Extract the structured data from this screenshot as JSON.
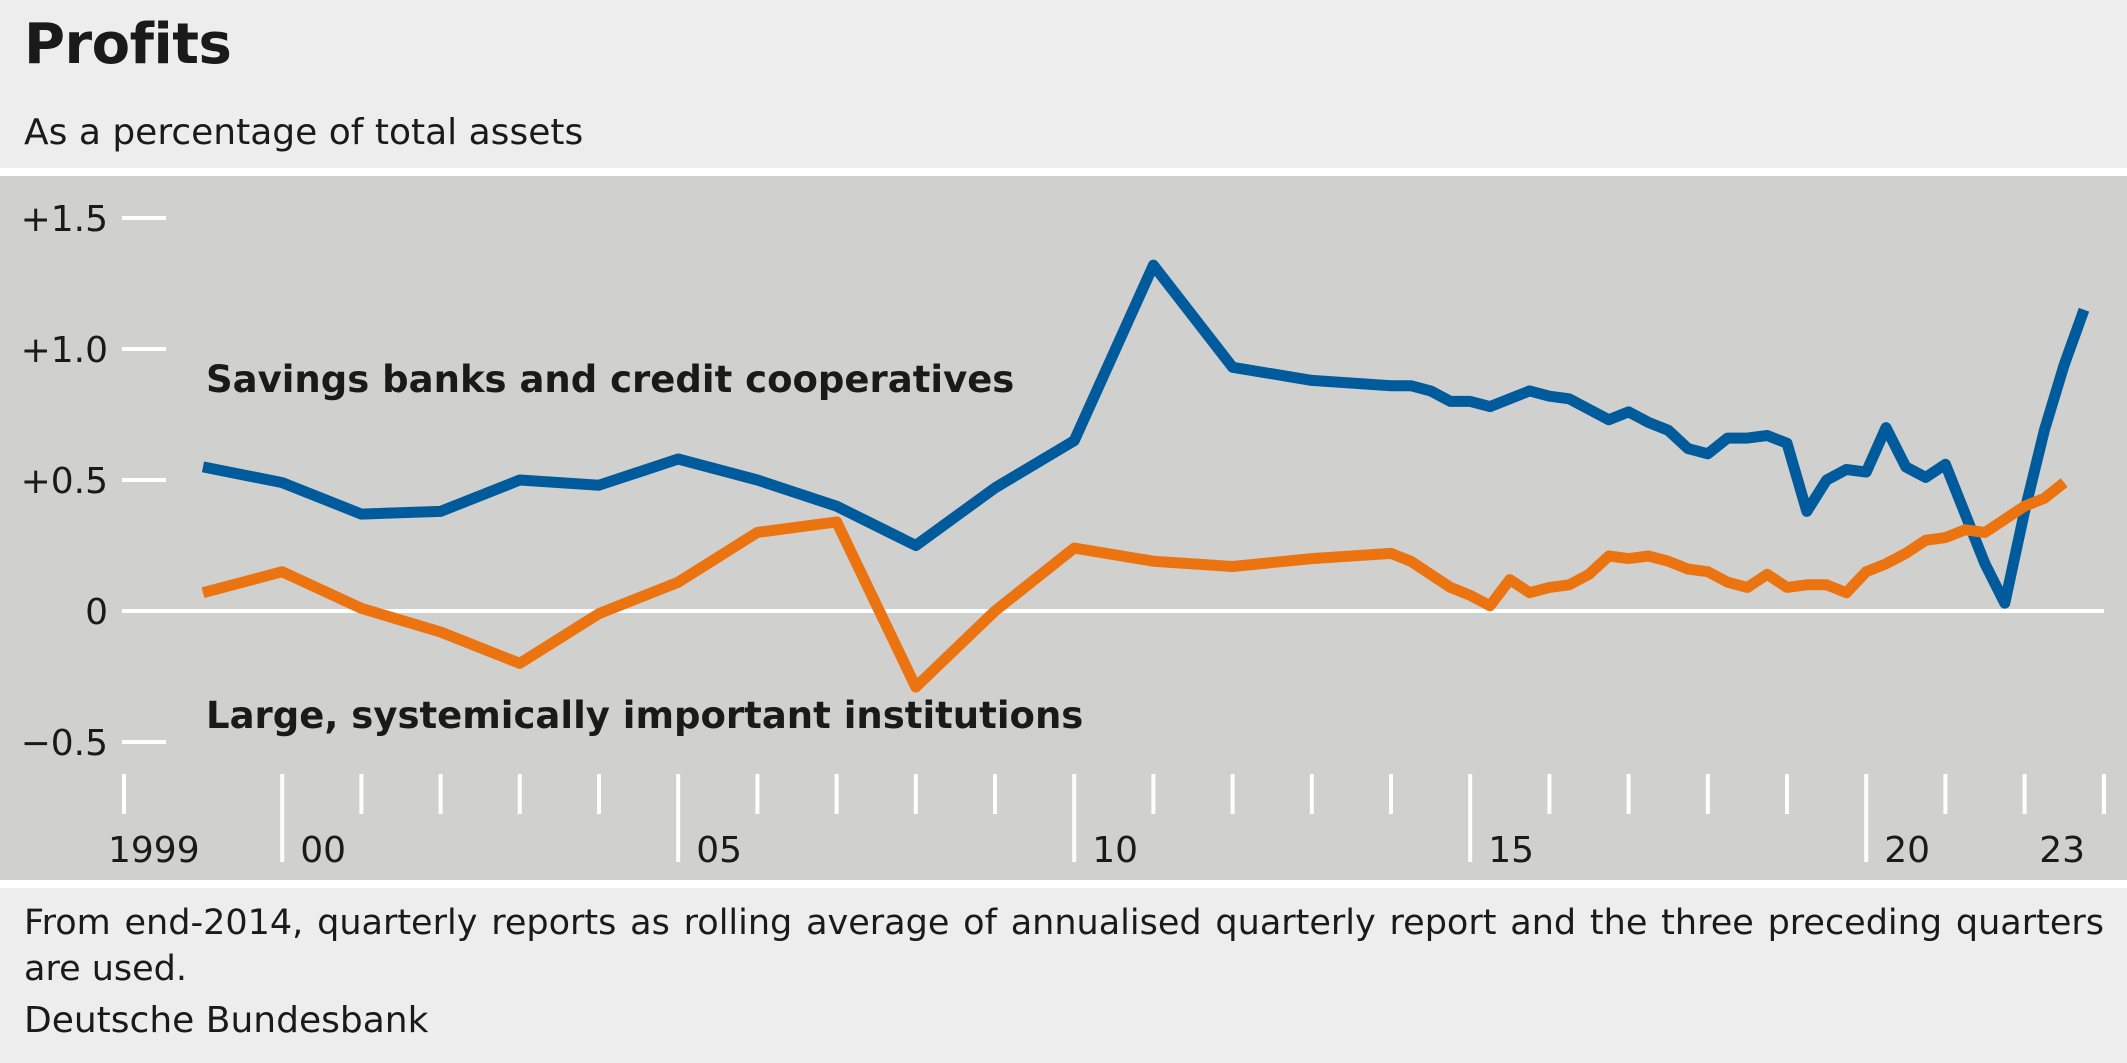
{
  "chart_data": {
    "type": "line",
    "title": "Profits",
    "subtitle": "As a percentage of total assets",
    "ylim": [
      -0.7,
      1.6
    ],
    "yticks": [
      {
        "value": 1.5,
        "label": "+1.5"
      },
      {
        "value": 1.0,
        "label": "+1.0"
      },
      {
        "value": 0.5,
        "label": "+0.5"
      },
      {
        "value": 0,
        "label": "0"
      },
      {
        "value": -0.5,
        "label": "−0.5"
      }
    ],
    "xlim": [
      1998.5,
      2023.8
    ],
    "xtick_years": [
      1999,
      2000,
      2001,
      2002,
      2003,
      2004,
      2005,
      2006,
      2007,
      2008,
      2009,
      2010,
      2011,
      2012,
      2013,
      2014,
      2015,
      2016,
      2017,
      2018,
      2019,
      2020,
      2021,
      2022,
      2023
    ],
    "xlabels": [
      {
        "year": 1999,
        "label": "1999"
      },
      {
        "year": 2000,
        "label": "00"
      },
      {
        "year": 2005,
        "label": "05"
      },
      {
        "year": 2010,
        "label": "10"
      },
      {
        "year": 2015,
        "label": "15"
      },
      {
        "year": 2020,
        "label": "20"
      },
      {
        "year": 2023,
        "label": "23"
      }
    ],
    "series": [
      {
        "name": "Savings banks and credit cooperatives",
        "color": "#005b9c",
        "points": [
          [
            1999.0,
            0.55
          ],
          [
            2000.0,
            0.49
          ],
          [
            2001.0,
            0.37
          ],
          [
            2002.0,
            0.38
          ],
          [
            2003.0,
            0.5
          ],
          [
            2004.0,
            0.48
          ],
          [
            2005.0,
            0.58
          ],
          [
            2006.0,
            0.5
          ],
          [
            2007.0,
            0.4
          ],
          [
            2008.0,
            0.25
          ],
          [
            2009.0,
            0.47
          ],
          [
            2010.0,
            0.65
          ],
          [
            2011.0,
            1.32
          ],
          [
            2012.0,
            0.93
          ],
          [
            2013.0,
            0.88
          ],
          [
            2014.0,
            0.86
          ],
          [
            2014.25,
            0.86
          ],
          [
            2014.5,
            0.84
          ],
          [
            2014.75,
            0.8
          ],
          [
            2015.0,
            0.8
          ],
          [
            2015.25,
            0.78
          ],
          [
            2015.5,
            0.81
          ],
          [
            2015.75,
            0.84
          ],
          [
            2016.0,
            0.82
          ],
          [
            2016.25,
            0.81
          ],
          [
            2016.5,
            0.77
          ],
          [
            2016.75,
            0.73
          ],
          [
            2017.0,
            0.76
          ],
          [
            2017.25,
            0.72
          ],
          [
            2017.5,
            0.69
          ],
          [
            2017.75,
            0.62
          ],
          [
            2018.0,
            0.6
          ],
          [
            2018.25,
            0.66
          ],
          [
            2018.5,
            0.66
          ],
          [
            2018.75,
            0.67
          ],
          [
            2019.0,
            0.64
          ],
          [
            2019.25,
            0.38
          ],
          [
            2019.5,
            0.5
          ],
          [
            2019.75,
            0.54
          ],
          [
            2020.0,
            0.53
          ],
          [
            2020.25,
            0.7
          ],
          [
            2020.5,
            0.55
          ],
          [
            2020.75,
            0.51
          ],
          [
            2021.0,
            0.56
          ],
          [
            2021.25,
            0.37
          ],
          [
            2021.5,
            0.18
          ],
          [
            2021.75,
            0.03
          ],
          [
            2022.0,
            0.38
          ],
          [
            2022.25,
            0.69
          ],
          [
            2022.5,
            0.94
          ],
          [
            2022.75,
            1.15
          ]
        ]
      },
      {
        "name": "Large, systemically important institutions",
        "color": "#ec7410",
        "points": [
          [
            1999.0,
            0.07
          ],
          [
            2000.0,
            0.15
          ],
          [
            2001.0,
            0.01
          ],
          [
            2002.0,
            -0.08
          ],
          [
            2003.0,
            -0.2
          ],
          [
            2004.0,
            -0.01
          ],
          [
            2005.0,
            0.11
          ],
          [
            2006.0,
            0.3
          ],
          [
            2007.0,
            0.34
          ],
          [
            2008.0,
            -0.29
          ],
          [
            2009.0,
            0.0
          ],
          [
            2010.0,
            0.24
          ],
          [
            2011.0,
            0.19
          ],
          [
            2012.0,
            0.17
          ],
          [
            2013.0,
            0.2
          ],
          [
            2014.0,
            0.22
          ],
          [
            2014.25,
            0.19
          ],
          [
            2014.5,
            0.14
          ],
          [
            2014.75,
            0.09
          ],
          [
            2015.0,
            0.06
          ],
          [
            2015.25,
            0.02
          ],
          [
            2015.5,
            0.12
          ],
          [
            2015.75,
            0.07
          ],
          [
            2016.0,
            0.09
          ],
          [
            2016.25,
            0.1
          ],
          [
            2016.5,
            0.14
          ],
          [
            2016.75,
            0.21
          ],
          [
            2017.0,
            0.2
          ],
          [
            2017.25,
            0.21
          ],
          [
            2017.5,
            0.19
          ],
          [
            2017.75,
            0.16
          ],
          [
            2018.0,
            0.15
          ],
          [
            2018.25,
            0.11
          ],
          [
            2018.5,
            0.09
          ],
          [
            2018.75,
            0.14
          ],
          [
            2019.0,
            0.09
          ],
          [
            2019.25,
            0.1
          ],
          [
            2019.5,
            0.1
          ],
          [
            2019.75,
            0.07
          ],
          [
            2020.0,
            0.15
          ],
          [
            2020.25,
            0.18
          ],
          [
            2020.5,
            0.22
          ],
          [
            2020.75,
            0.27
          ],
          [
            2021.0,
            0.28
          ],
          [
            2021.25,
            0.31
          ],
          [
            2021.5,
            0.3
          ],
          [
            2021.75,
            0.35
          ],
          [
            2022.0,
            0.4
          ],
          [
            2022.25,
            0.43
          ],
          [
            2022.5,
            0.49
          ]
        ]
      }
    ]
  },
  "footnote": "From end-2014, quarterly reports as rolling average of annualised quarterly report and the three preceding quarters are used.",
  "source": "Deutsche Bundesbank"
}
